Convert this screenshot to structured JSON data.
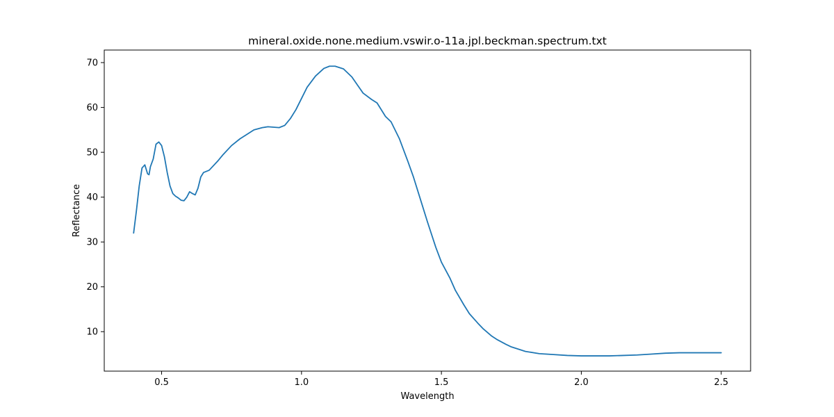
{
  "chart_data": {
    "type": "line",
    "title": "mineral.oxide.none.medium.vswir.o-11a.jpl.beckman.spectrum.txt",
    "xlabel": "Wavelength",
    "ylabel": "Reflectance",
    "xlim": [
      0.295,
      2.605
    ],
    "ylim": [
      1.2,
      72.8
    ],
    "xticks": [
      0.5,
      1.0,
      1.5,
      2.0,
      2.5
    ],
    "xtick_labels": [
      "0.5",
      "1.0",
      "1.5",
      "2.0",
      "2.5"
    ],
    "yticks": [
      10,
      20,
      30,
      40,
      50,
      60,
      70
    ],
    "ytick_labels": [
      "10",
      "20",
      "30",
      "40",
      "50",
      "60",
      "70"
    ],
    "grid": false,
    "color": "#1f77b4",
    "series": [
      {
        "x": [
          0.4,
          0.41,
          0.42,
          0.43,
          0.44,
          0.45,
          0.455,
          0.46,
          0.47,
          0.48,
          0.49,
          0.5,
          0.51,
          0.52,
          0.53,
          0.54,
          0.55,
          0.56,
          0.57,
          0.58,
          0.59,
          0.6,
          0.61,
          0.62,
          0.63,
          0.64,
          0.65,
          0.67,
          0.7,
          0.72,
          0.75,
          0.78,
          0.8,
          0.83,
          0.86,
          0.88,
          0.9,
          0.92,
          0.94,
          0.96,
          0.98,
          1.0,
          1.02,
          1.05,
          1.08,
          1.1,
          1.12,
          1.15,
          1.18,
          1.2,
          1.22,
          1.25,
          1.27,
          1.3,
          1.32,
          1.35,
          1.38,
          1.4,
          1.43,
          1.45,
          1.48,
          1.5,
          1.53,
          1.55,
          1.58,
          1.6,
          1.63,
          1.65,
          1.68,
          1.7,
          1.73,
          1.75,
          1.78,
          1.8,
          1.85,
          1.9,
          1.95,
          2.0,
          2.05,
          2.1,
          2.15,
          2.2,
          2.25,
          2.3,
          2.35,
          2.4,
          2.45,
          2.5
        ],
        "y": [
          32.0,
          37.0,
          42.5,
          46.5,
          47.2,
          45.2,
          45.0,
          46.8,
          48.5,
          51.8,
          52.3,
          51.5,
          49.0,
          45.5,
          42.5,
          40.8,
          40.2,
          39.8,
          39.3,
          39.2,
          40.0,
          41.2,
          40.8,
          40.5,
          42.0,
          44.5,
          45.5,
          46.0,
          48.0,
          49.5,
          51.5,
          53.0,
          53.8,
          55.0,
          55.5,
          55.7,
          55.6,
          55.5,
          56.0,
          57.5,
          59.5,
          62.0,
          64.5,
          67.0,
          68.7,
          69.2,
          69.2,
          68.6,
          66.8,
          65.0,
          63.2,
          61.8,
          61.0,
          58.0,
          56.8,
          53.0,
          48.0,
          44.5,
          38.5,
          34.5,
          28.8,
          25.5,
          22.0,
          19.2,
          16.0,
          14.0,
          11.9,
          10.6,
          9.0,
          8.2,
          7.2,
          6.6,
          6.0,
          5.6,
          5.1,
          4.9,
          4.7,
          4.6,
          4.6,
          4.6,
          4.7,
          4.8,
          5.0,
          5.2,
          5.3,
          5.3,
          5.3,
          5.3
        ]
      }
    ]
  }
}
